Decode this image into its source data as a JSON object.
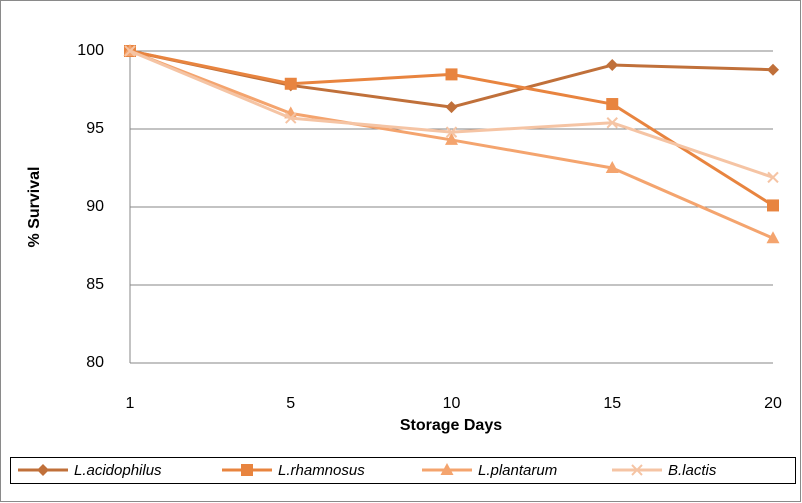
{
  "chart_data": {
    "type": "line",
    "x_label": "Storage Days",
    "y_label": "% Survival",
    "categories": [
      "1",
      "5",
      "10",
      "15",
      "20"
    ],
    "series": [
      {
        "name": "L.acidophilus",
        "color": "#c0703a",
        "marker": "diamond",
        "values": [
          100,
          97.8,
          96.4,
          99.1,
          98.8
        ]
      },
      {
        "name": "L.rhamnosus",
        "color": "#e8843f",
        "marker": "square",
        "values": [
          100,
          97.9,
          98.5,
          96.6,
          90.1
        ]
      },
      {
        "name": "L.plantarum",
        "color": "#f4a46e",
        "marker": "triangle",
        "values": [
          100,
          96.0,
          94.3,
          92.5,
          88.0
        ]
      },
      {
        "name": "B.lactis",
        "color": "#f5c4a4",
        "marker": "x",
        "values": [
          100,
          95.7,
          94.8,
          95.4,
          91.9
        ]
      }
    ],
    "ylim": [
      80,
      100
    ],
    "yticks": [
      80,
      85,
      90,
      95,
      100
    ],
    "grid": true,
    "legend": "bottom"
  }
}
